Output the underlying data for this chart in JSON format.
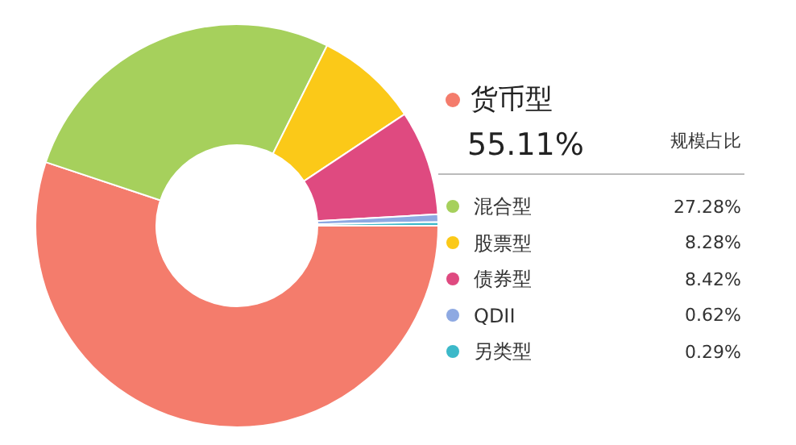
{
  "chart_data": {
    "type": "donut",
    "categories": [
      "货币型",
      "混合型",
      "股票型",
      "债券型",
      "QDII",
      "另类型"
    ],
    "values": [
      55.11,
      27.28,
      8.28,
      8.42,
      0.62,
      0.29
    ],
    "colors": [
      "#f47c6c",
      "#a6d05c",
      "#fbc918",
      "#df4a80",
      "#8ea9e2",
      "#3cb9c9"
    ],
    "value_labels": [
      "55.11%",
      "27.28%",
      "8.28%",
      "8.42%",
      "0.62%",
      "0.29%"
    ],
    "annotations": [
      "规模占比"
    ],
    "legend": "right"
  }
}
